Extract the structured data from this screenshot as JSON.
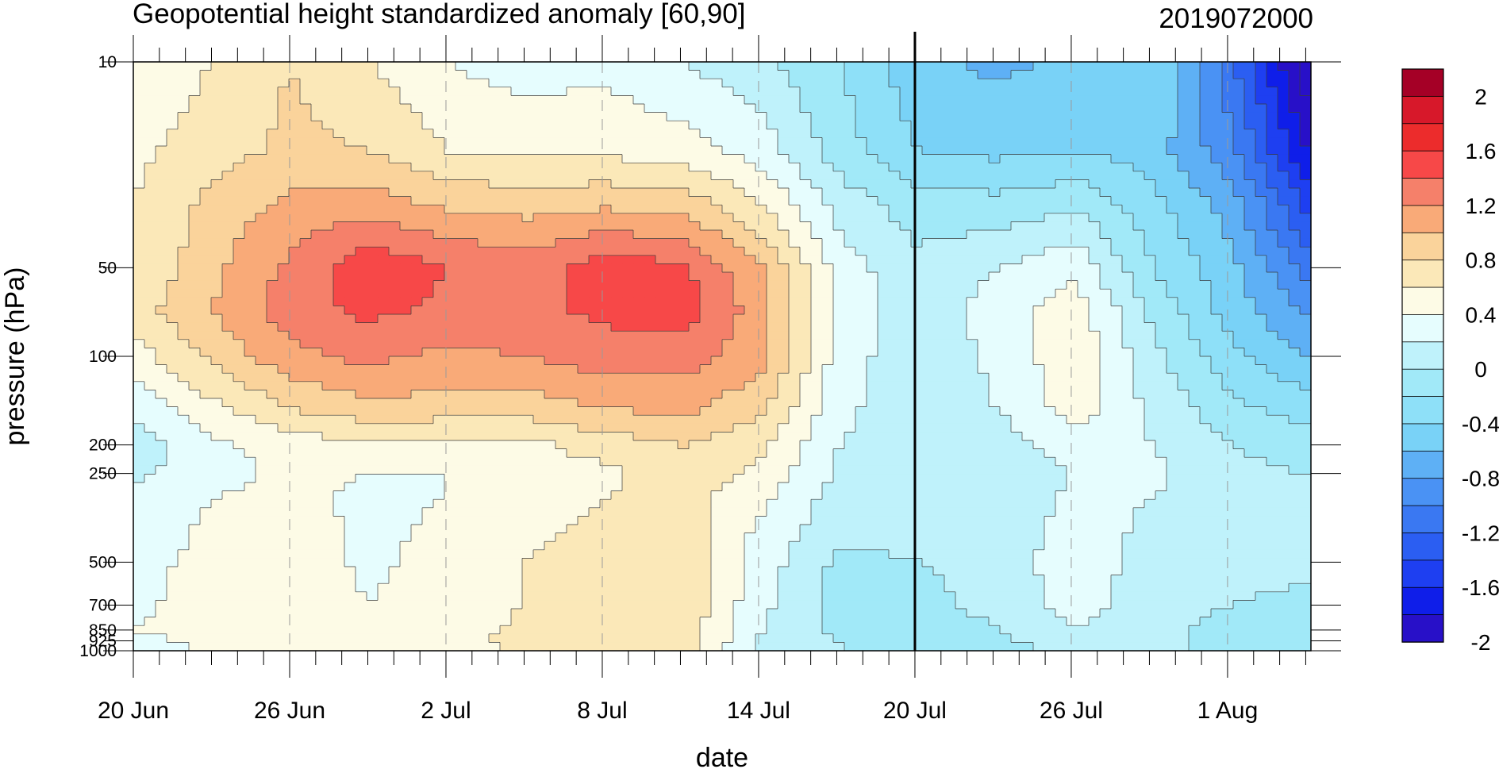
{
  "chart_data": {
    "type": "heatmap",
    "title_left": "Geopotential height standardized anomaly [60,90]",
    "title_right": "2019072000",
    "xlabel": "date",
    "ylabel": "pressure (hPa)",
    "x_ticks": [
      {
        "day": 0,
        "label": "20 Jun"
      },
      {
        "day": 6,
        "label": "26 Jun"
      },
      {
        "day": 12,
        "label": "2 Jul"
      },
      {
        "day": 18,
        "label": "8 Jul"
      },
      {
        "day": 24,
        "label": "14 Jul"
      },
      {
        "day": 30,
        "label": "20 Jul"
      },
      {
        "day": 36,
        "label": "26 Jul"
      },
      {
        "day": 42,
        "label": "1 Aug"
      }
    ],
    "x_range_days": [
      0,
      45.2
    ],
    "y_scale": "log",
    "y_range_hPa": [
      10,
      1000
    ],
    "y_ticks": [
      {
        "p": 10,
        "label": "10"
      },
      {
        "p": 50,
        "label": "50"
      },
      {
        "p": 100,
        "label": "100"
      },
      {
        "p": 200,
        "label": "200"
      },
      {
        "p": 250,
        "label": "250"
      },
      {
        "p": 500,
        "label": "500"
      },
      {
        "p": 700,
        "label": "700"
      },
      {
        "p": 850,
        "label": "850"
      },
      {
        "p": 925,
        "label": "925"
      },
      {
        "p": 1000,
        "label": "1000"
      }
    ],
    "analysis_day": 30,
    "pressure_levels_hPa": [
      10,
      20,
      30,
      50,
      70,
      100,
      150,
      200,
      250,
      300,
      400,
      500,
      700,
      850,
      925,
      1000
    ],
    "anomaly_grid": [
      [
        0.45,
        0.55,
        0.6,
        0.6,
        0.7,
        0.5,
        0.25,
        0.1,
        0.15,
        0.25,
        0.25,
        0.3,
        0.35,
        0.4,
        0.3,
        0.25
      ],
      [
        0.6,
        0.7,
        0.85,
        0.95,
        1.0,
        0.85,
        0.55,
        0.35,
        0.3,
        0.4,
        0.45,
        0.5,
        0.5,
        0.55,
        0.5,
        0.45
      ],
      [
        0.8,
        0.85,
        1.05,
        1.25,
        1.3,
        1.15,
        0.8,
        0.5,
        0.45,
        0.45,
        0.5,
        0.55,
        0.55,
        0.55,
        0.55,
        0.5
      ],
      [
        0.6,
        0.8,
        1.1,
        1.55,
        1.45,
        1.25,
        0.95,
        0.55,
        0.4,
        0.35,
        0.35,
        0.35,
        0.4,
        0.45,
        0.5,
        0.45
      ],
      [
        0.4,
        0.6,
        0.95,
        1.4,
        1.35,
        1.15,
        0.9,
        0.55,
        0.4,
        0.4,
        0.45,
        0.5,
        0.5,
        0.5,
        0.55,
        0.55
      ],
      [
        0.3,
        0.55,
        0.9,
        1.3,
        1.35,
        1.2,
        0.9,
        0.55,
        0.45,
        0.5,
        0.55,
        0.6,
        0.6,
        0.65,
        0.65,
        0.6
      ],
      [
        0.35,
        0.55,
        0.95,
        1.5,
        1.45,
        1.3,
        1.0,
        0.7,
        0.55,
        0.6,
        0.65,
        0.7,
        0.75,
        0.75,
        0.75,
        0.7
      ],
      [
        0.2,
        0.5,
        0.9,
        1.45,
        1.5,
        1.3,
        1.05,
        0.8,
        0.7,
        0.7,
        0.7,
        0.75,
        0.75,
        0.75,
        0.75,
        0.75
      ],
      [
        0.05,
        0.3,
        0.6,
        1.0,
        1.1,
        1.05,
        0.85,
        0.65,
        0.55,
        0.45,
        0.35,
        0.3,
        0.25,
        0.2,
        0.15,
        0.1
      ],
      [
        -0.2,
        -0.1,
        0.1,
        0.3,
        0.35,
        0.3,
        0.25,
        0.2,
        0.15,
        0.1,
        0.05,
        -0.05,
        -0.1,
        -0.05,
        0.0,
        0.0
      ],
      [
        -0.55,
        -0.4,
        -0.1,
        0.05,
        0.05,
        0.05,
        0.05,
        0.05,
        0.05,
        0.05,
        0.05,
        0.0,
        -0.05,
        -0.1,
        -0.1,
        -0.05
      ],
      [
        -0.65,
        -0.45,
        -0.15,
        0.2,
        0.3,
        0.25,
        0.2,
        0.1,
        0.05,
        0.05,
        0.05,
        0.05,
        0.05,
        0.0,
        -0.05,
        -0.05
      ],
      [
        -0.55,
        -0.4,
        -0.05,
        0.35,
        0.5,
        0.55,
        0.5,
        0.3,
        0.2,
        0.25,
        0.3,
        0.35,
        0.3,
        0.2,
        0.1,
        0.05
      ],
      [
        -0.4,
        -0.5,
        -0.35,
        -0.2,
        -0.05,
        0.05,
        0.15,
        0.2,
        0.25,
        0.2,
        0.15,
        0.1,
        0.05,
        0.05,
        0.05,
        0.05
      ],
      [
        -1.15,
        -0.95,
        -0.7,
        -0.55,
        -0.5,
        -0.35,
        -0.15,
        0.0,
        0.05,
        0.05,
        0.05,
        0.05,
        0.0,
        -0.05,
        -0.05,
        -0.05
      ],
      [
        -2.2,
        -1.85,
        -1.5,
        -1.1,
        -0.85,
        -0.6,
        -0.3,
        -0.1,
        0.0,
        0.05,
        0.05,
        0.05,
        -0.05,
        -0.1,
        -0.15,
        -0.1
      ]
    ],
    "contour_interval": 0.2,
    "colorbar": {
      "labels": [
        "2",
        "1.6",
        "1.2",
        "0.8",
        "0.4",
        "0",
        "-0.4",
        "-0.8",
        "-1.2",
        "-1.6",
        "-2"
      ],
      "colors": [
        "#a50026",
        "#d7182a",
        "#ec2c2c",
        "#f74848",
        "#f5806a",
        "#f9aa78",
        "#fad39b",
        "#fbe8b8",
        "#fdfbe6",
        "#e6fdfe",
        "#bff2fb",
        "#a1e9f8",
        "#8ee0f8",
        "#79d2f7",
        "#5eb0f5",
        "#4a92f4",
        "#3a78f2",
        "#2b5ef2",
        "#1e3ff1",
        "#0f1ee9",
        "#2810c8"
      ]
    }
  }
}
